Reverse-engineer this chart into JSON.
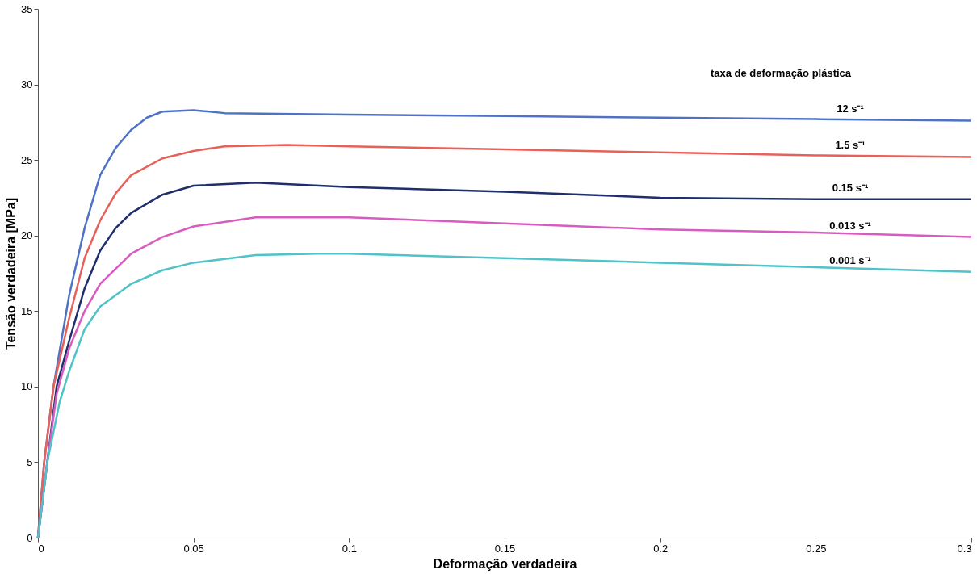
{
  "chart_data": {
    "type": "line",
    "xlabel": "Deformação verdadeira",
    "ylabel": "Tensão verdadeira [MPa]",
    "legend_title": "taxa de deformação plástica",
    "xlim": [
      0,
      0.3
    ],
    "xticks": [
      0,
      0.05,
      0.1,
      0.15,
      0.2,
      0.25,
      0.3
    ],
    "ylim": [
      0,
      35
    ],
    "yticks": [
      0,
      5,
      10,
      15,
      20,
      25,
      30,
      35
    ],
    "grid": false,
    "legend": false,
    "marker": "none",
    "line_style": "solid",
    "series": [
      {
        "name": "12 s⁻¹",
        "color": "#4f72c4",
        "x": [
          0,
          0.002,
          0.005,
          0.01,
          0.015,
          0.02,
          0.025,
          0.03,
          0.035,
          0.04,
          0.05,
          0.06,
          0.1,
          0.15,
          0.2,
          0.25,
          0.3
        ],
        "values": [
          0,
          5,
          10,
          16,
          20.5,
          24,
          25.8,
          27,
          27.8,
          28.2,
          28.3,
          28.1,
          28,
          27.9,
          27.8,
          27.7,
          27.6
        ]
      },
      {
        "name": "1.5 s⁻¹",
        "color": "#e8605a",
        "x": [
          0,
          0.002,
          0.005,
          0.01,
          0.015,
          0.02,
          0.025,
          0.03,
          0.04,
          0.05,
          0.06,
          0.08,
          0.1,
          0.15,
          0.2,
          0.25,
          0.3
        ],
        "values": [
          0,
          5,
          10,
          14.5,
          18.5,
          21,
          22.8,
          24,
          25.1,
          25.6,
          25.9,
          26,
          25.9,
          25.7,
          25.5,
          25.3,
          25.2
        ]
      },
      {
        "name": "0.15 s⁻¹",
        "color": "#1f2f6b",
        "x": [
          0,
          0.003,
          0.006,
          0.01,
          0.015,
          0.02,
          0.025,
          0.03,
          0.04,
          0.05,
          0.07,
          0.1,
          0.15,
          0.2,
          0.25,
          0.3
        ],
        "values": [
          0,
          5,
          10,
          13,
          16.5,
          19,
          20.5,
          21.5,
          22.7,
          23.3,
          23.5,
          23.2,
          22.9,
          22.5,
          22.4,
          22.4
        ]
      },
      {
        "name": "0.013 s⁻¹",
        "color": "#d85bc0",
        "x": [
          0,
          0.003,
          0.006,
          0.01,
          0.015,
          0.02,
          0.03,
          0.04,
          0.05,
          0.07,
          0.1,
          0.15,
          0.2,
          0.25,
          0.3
        ],
        "values": [
          0,
          5,
          9.5,
          12.5,
          15,
          16.8,
          18.8,
          19.9,
          20.6,
          21.2,
          21.2,
          20.8,
          20.4,
          20.2,
          19.9
        ]
      },
      {
        "name": "0.001 s⁻¹",
        "color": "#4fc3c8",
        "x": [
          0,
          0.003,
          0.007,
          0.01,
          0.015,
          0.02,
          0.03,
          0.04,
          0.05,
          0.07,
          0.09,
          0.1,
          0.15,
          0.2,
          0.25,
          0.3
        ],
        "values": [
          0,
          5,
          9,
          11,
          13.8,
          15.3,
          16.8,
          17.7,
          18.2,
          18.7,
          18.8,
          18.8,
          18.5,
          18.2,
          17.9,
          17.6
        ]
      }
    ]
  }
}
